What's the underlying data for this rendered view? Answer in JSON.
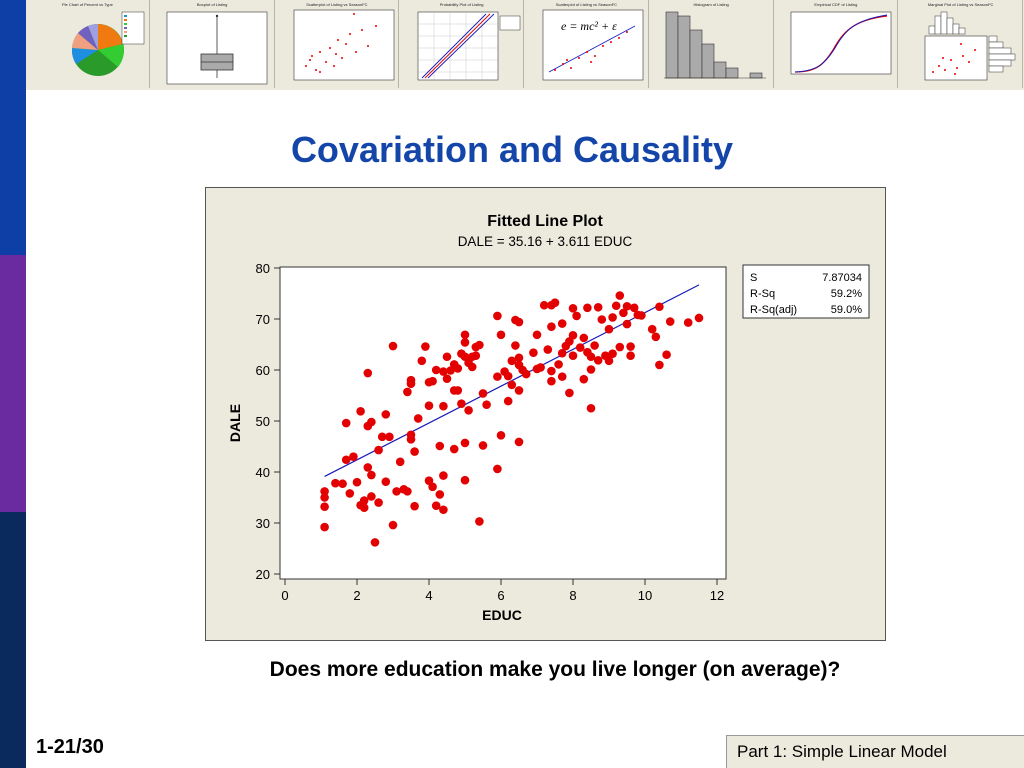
{
  "slide": {
    "title": "Covariation and Causality",
    "question": "Does more education make you live longer (on average)?",
    "slide_number": "1-21/30",
    "section": "Part 1: Simple Linear Model"
  },
  "thumbnails": [
    {
      "title": "Pie Chart of Percent vs Type"
    },
    {
      "title": "Boxplot of Listing"
    },
    {
      "title": "Scatterplot of Listing vs SeasonFC"
    },
    {
      "title": "Probability Plot of Listing"
    },
    {
      "title": "Scatterplot of Listing vs SeasonFC"
    },
    {
      "title": "Histogram of Listing"
    },
    {
      "title": "Empirical CDF of Listing"
    },
    {
      "title": "Marginal Plot of Listing vs SeasonFC"
    }
  ],
  "thumb_equation": "e = mc² + ε",
  "colors": {
    "title": "#1445a8",
    "points": "#e30000",
    "fit_line": "#1a1ab8",
    "frame_bg": "#ece9dd"
  },
  "chart_data": {
    "type": "scatter",
    "title": "Fitted Line Plot",
    "subtitle": "DALE =  35.16 + 3.611 EDUC",
    "xlabel": "EDUC",
    "ylabel": "DALE",
    "xlim": [
      0,
      12
    ],
    "ylim": [
      20,
      80
    ],
    "xticks": [
      0,
      2,
      4,
      6,
      8,
      10,
      12
    ],
    "yticks": [
      20,
      30,
      40,
      50,
      60,
      70,
      80
    ],
    "fit": {
      "intercept": 35.16,
      "slope": 3.611,
      "x_range": [
        1.1,
        11.5
      ]
    },
    "stats": [
      {
        "label": "S",
        "value": "7.87034"
      },
      {
        "label": "R-Sq",
        "value": "59.2%"
      },
      {
        "label": "R-Sq(adj)",
        "value": "59.0%"
      }
    ],
    "legend_position": "top-right",
    "points": [
      [
        1.1,
        29.2
      ],
      [
        1.1,
        33.2
      ],
      [
        1.1,
        35.0
      ],
      [
        1.1,
        36.2
      ],
      [
        1.4,
        37.8
      ],
      [
        1.6,
        37.7
      ],
      [
        1.7,
        42.4
      ],
      [
        1.7,
        49.6
      ],
      [
        1.8,
        35.8
      ],
      [
        1.9,
        43.0
      ],
      [
        2.0,
        38.0
      ],
      [
        2.1,
        33.5
      ],
      [
        2.2,
        34.4
      ],
      [
        2.2,
        33.0
      ],
      [
        2.1,
        51.9
      ],
      [
        2.3,
        49.0
      ],
      [
        2.3,
        59.4
      ],
      [
        2.3,
        40.9
      ],
      [
        2.4,
        35.2
      ],
      [
        2.4,
        49.8
      ],
      [
        2.4,
        39.4
      ],
      [
        2.5,
        26.2
      ],
      [
        2.6,
        34.0
      ],
      [
        2.6,
        44.3
      ],
      [
        2.7,
        46.9
      ],
      [
        2.8,
        51.3
      ],
      [
        2.8,
        38.1
      ],
      [
        2.9,
        46.9
      ],
      [
        3.0,
        64.7
      ],
      [
        3.0,
        29.6
      ],
      [
        3.1,
        36.2
      ],
      [
        3.2,
        42.0
      ],
      [
        3.3,
        36.6
      ],
      [
        3.4,
        36.2
      ],
      [
        3.4,
        55.7
      ],
      [
        3.5,
        57.3
      ],
      [
        3.5,
        58.0
      ],
      [
        3.5,
        46.4
      ],
      [
        3.5,
        47.3
      ],
      [
        3.6,
        33.3
      ],
      [
        3.6,
        44.0
      ],
      [
        3.7,
        50.5
      ],
      [
        3.8,
        61.8
      ],
      [
        3.9,
        64.6
      ],
      [
        4.0,
        38.3
      ],
      [
        4.0,
        57.6
      ],
      [
        4.0,
        53.0
      ],
      [
        4.1,
        37.1
      ],
      [
        4.1,
        57.8
      ],
      [
        4.2,
        33.4
      ],
      [
        4.2,
        60.0
      ],
      [
        4.3,
        35.6
      ],
      [
        4.3,
        45.1
      ],
      [
        4.4,
        39.3
      ],
      [
        4.4,
        32.6
      ],
      [
        4.4,
        52.9
      ],
      [
        4.4,
        59.7
      ],
      [
        4.5,
        58.3
      ],
      [
        4.5,
        62.6
      ],
      [
        4.6,
        59.9
      ],
      [
        4.7,
        44.5
      ],
      [
        4.7,
        61.1
      ],
      [
        4.7,
        56.0
      ],
      [
        4.8,
        60.3
      ],
      [
        4.8,
        56.0
      ],
      [
        4.9,
        63.2
      ],
      [
        4.9,
        53.4
      ],
      [
        5.0,
        65.4
      ],
      [
        5.0,
        66.9
      ],
      [
        5.0,
        62.6
      ],
      [
        5.0,
        38.4
      ],
      [
        5.0,
        45.7
      ],
      [
        5.1,
        52.1
      ],
      [
        5.1,
        61.4
      ],
      [
        5.2,
        60.6
      ],
      [
        5.2,
        62.6
      ],
      [
        5.3,
        64.5
      ],
      [
        5.3,
        62.8
      ],
      [
        5.4,
        64.9
      ],
      [
        5.4,
        30.3
      ],
      [
        5.5,
        45.2
      ],
      [
        5.5,
        55.4
      ],
      [
        5.6,
        53.2
      ],
      [
        5.9,
        40.6
      ],
      [
        5.9,
        58.7
      ],
      [
        5.9,
        70.6
      ],
      [
        6.0,
        66.9
      ],
      [
        6.0,
        47.2
      ],
      [
        6.1,
        59.7
      ],
      [
        6.2,
        53.9
      ],
      [
        6.2,
        58.8
      ],
      [
        6.3,
        61.8
      ],
      [
        6.3,
        57.1
      ],
      [
        6.4,
        64.8
      ],
      [
        6.4,
        69.8
      ],
      [
        6.5,
        62.4
      ],
      [
        6.5,
        61.0
      ],
      [
        6.5,
        56.0
      ],
      [
        6.5,
        69.4
      ],
      [
        6.5,
        45.9
      ],
      [
        6.6,
        60.0
      ],
      [
        6.7,
        59.2
      ],
      [
        6.9,
        63.4
      ],
      [
        7.0,
        60.2
      ],
      [
        7.0,
        66.9
      ],
      [
        7.1,
        60.5
      ],
      [
        7.2,
        72.7
      ],
      [
        7.3,
        64.0
      ],
      [
        7.4,
        59.8
      ],
      [
        7.4,
        57.8
      ],
      [
        7.4,
        68.5
      ],
      [
        7.4,
        72.7
      ],
      [
        7.5,
        73.2
      ],
      [
        7.6,
        61.1
      ],
      [
        7.7,
        63.3
      ],
      [
        7.7,
        58.7
      ],
      [
        7.7,
        69.1
      ],
      [
        7.8,
        64.7
      ],
      [
        7.9,
        65.6
      ],
      [
        7.9,
        55.5
      ],
      [
        8.0,
        72.1
      ],
      [
        8.0,
        66.8
      ],
      [
        8.0,
        62.8
      ],
      [
        8.1,
        70.6
      ],
      [
        8.2,
        64.4
      ],
      [
        8.3,
        58.2
      ],
      [
        8.3,
        66.3
      ],
      [
        8.4,
        63.5
      ],
      [
        8.4,
        72.2
      ],
      [
        8.5,
        52.5
      ],
      [
        8.5,
        62.6
      ],
      [
        8.5,
        60.1
      ],
      [
        8.6,
        64.8
      ],
      [
        8.7,
        61.9
      ],
      [
        8.7,
        72.3
      ],
      [
        8.8,
        69.9
      ],
      [
        8.9,
        62.8
      ],
      [
        9.0,
        61.8
      ],
      [
        9.0,
        68.0
      ],
      [
        9.1,
        63.2
      ],
      [
        9.1,
        70.3
      ],
      [
        9.2,
        72.6
      ],
      [
        9.3,
        74.6
      ],
      [
        9.3,
        64.5
      ],
      [
        9.4,
        71.2
      ],
      [
        9.5,
        69.0
      ],
      [
        9.5,
        72.5
      ],
      [
        9.6,
        62.8
      ],
      [
        9.6,
        64.6
      ],
      [
        9.7,
        72.2
      ],
      [
        9.8,
        70.8
      ],
      [
        9.9,
        70.7
      ],
      [
        10.2,
        68.0
      ],
      [
        10.3,
        66.5
      ],
      [
        10.4,
        72.4
      ],
      [
        10.4,
        61.0
      ],
      [
        10.6,
        63.0
      ],
      [
        10.7,
        69.5
      ],
      [
        11.2,
        69.3
      ],
      [
        11.5,
        70.2
      ]
    ]
  }
}
